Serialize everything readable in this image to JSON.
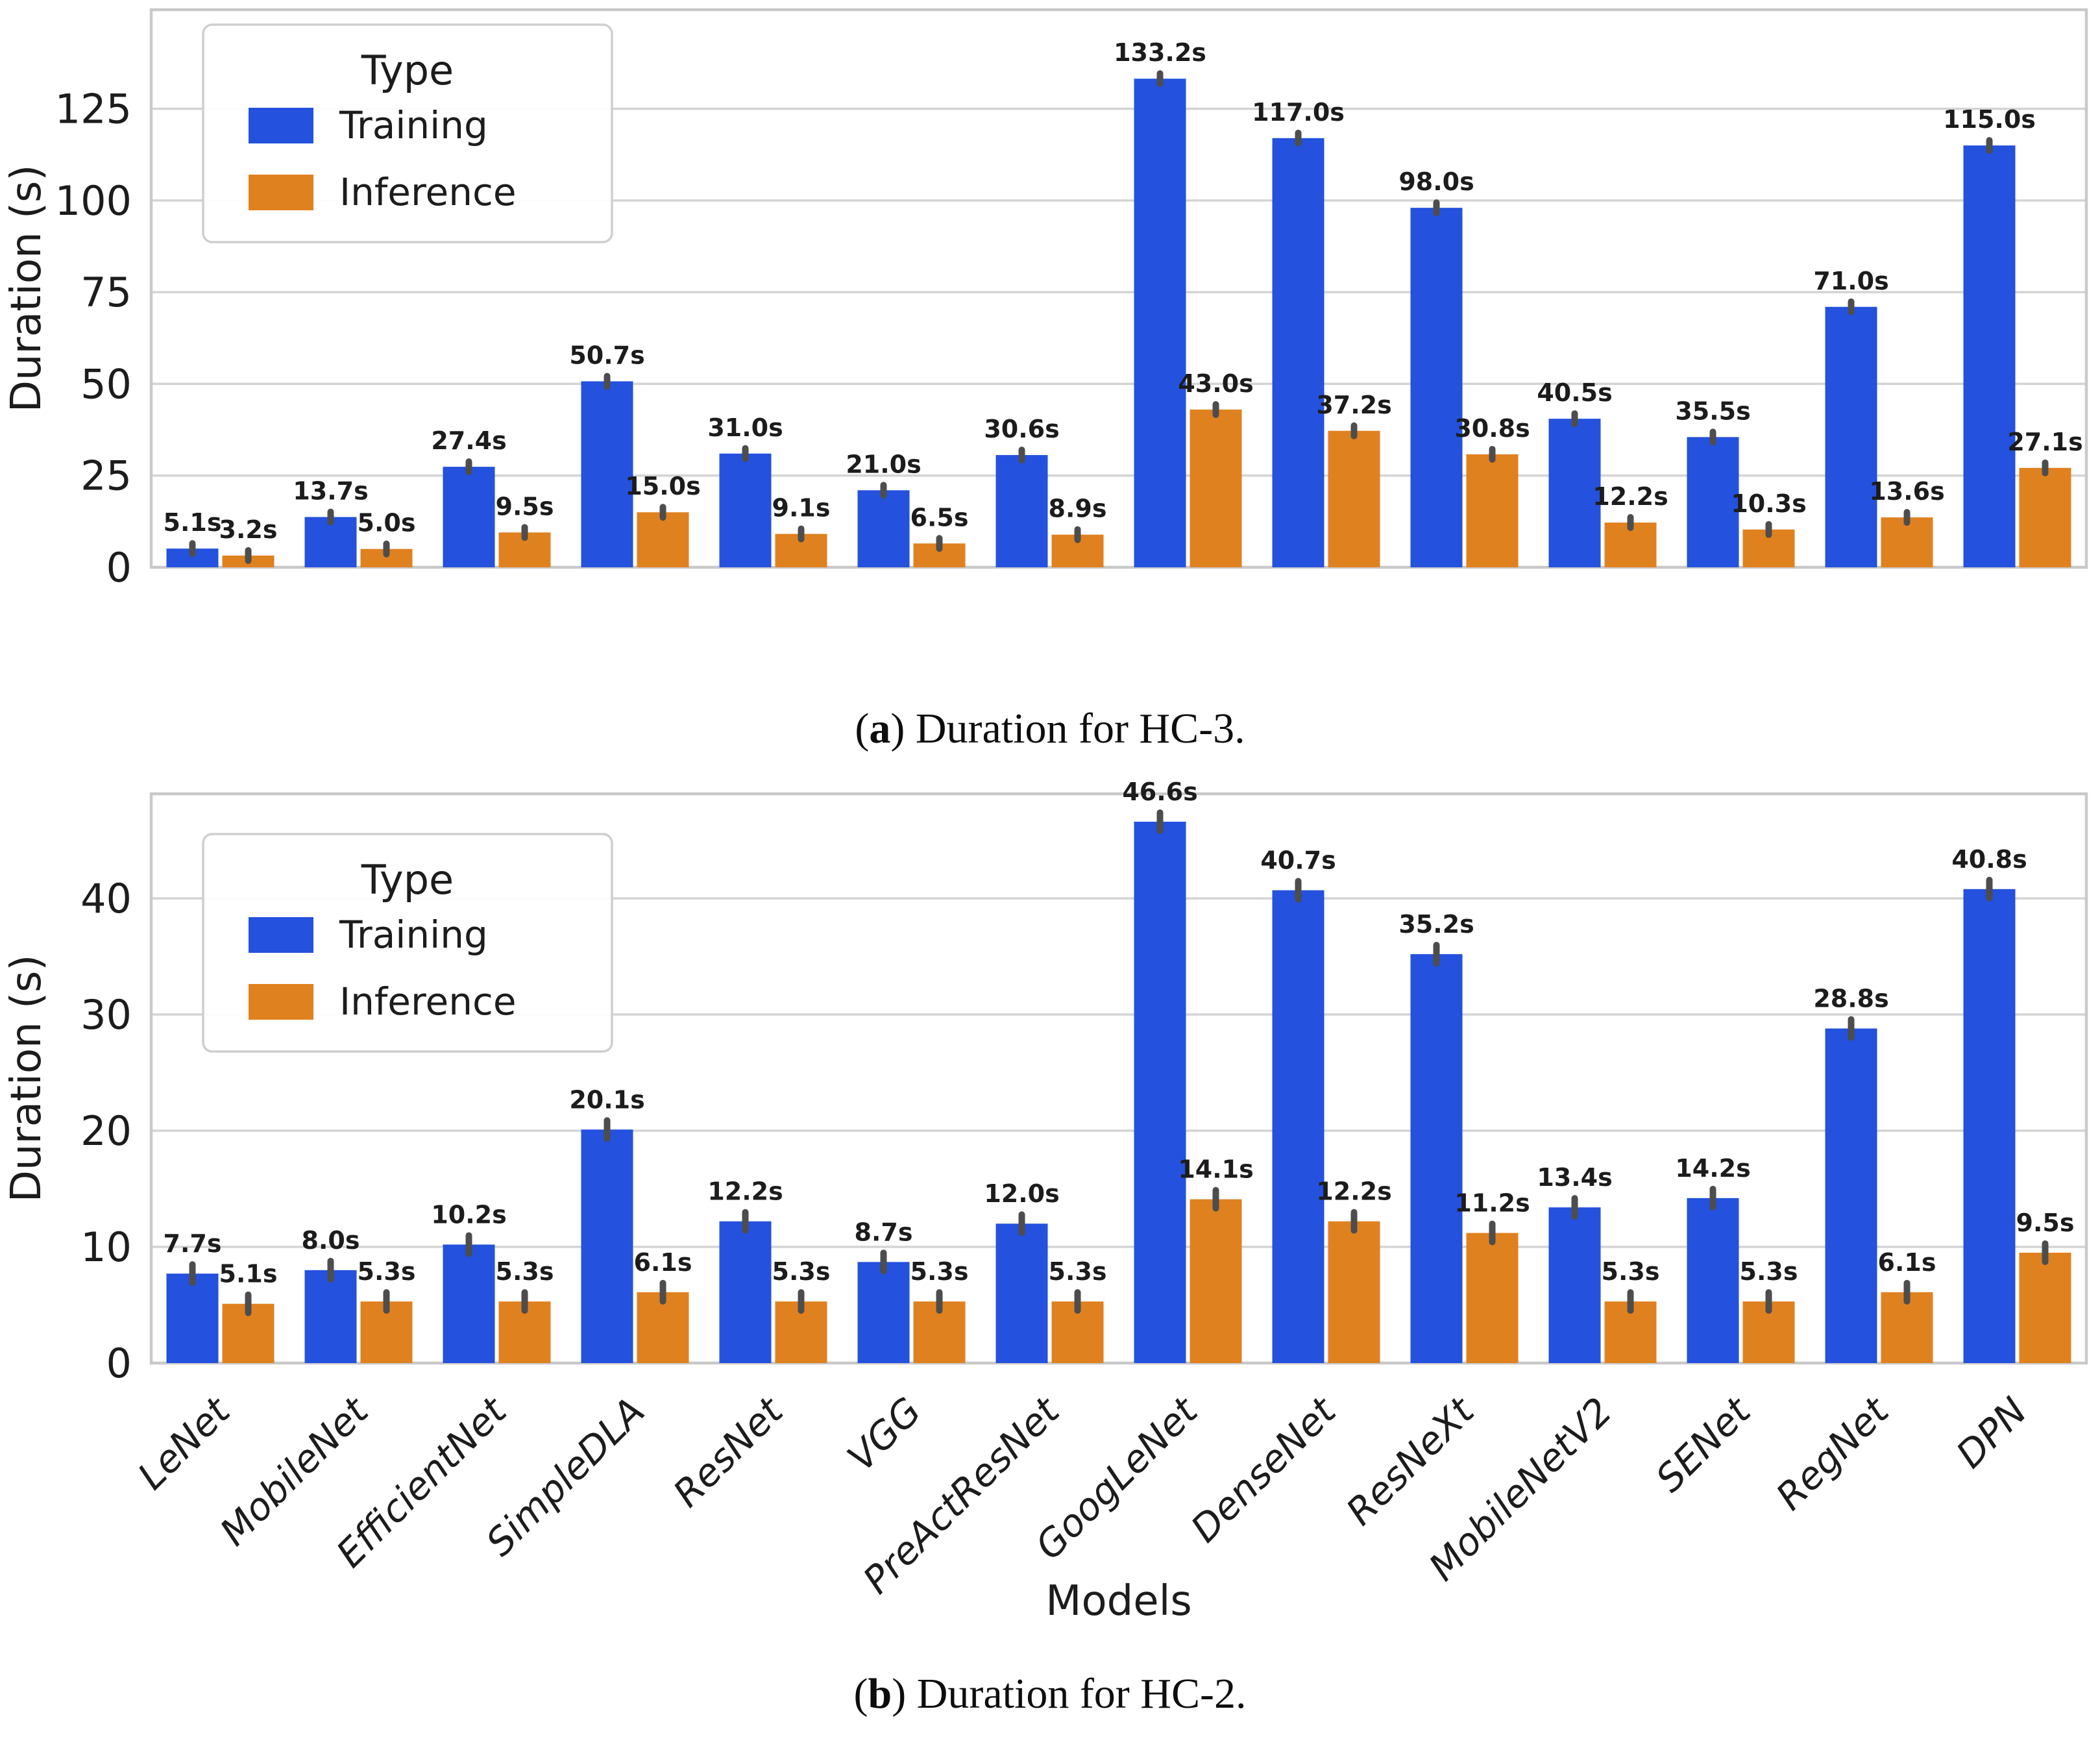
{
  "style": {
    "background": "#ffffff",
    "grid_color": "#d4d4d4",
    "frame_color": "#c9c9c9",
    "text_color": "#1c1c1c",
    "error_marker_color": "#4d4d4d",
    "training_color": "#2451dd",
    "inference_color": "#e0811f"
  },
  "legend": {
    "title": "Type",
    "entries": [
      {
        "label": "Training",
        "color": "#2451dd"
      },
      {
        "label": "Inference",
        "color": "#e0811f"
      }
    ]
  },
  "captions": [
    {
      "open": "(",
      "letter": "a",
      "rest": ") Duration for HC-3."
    },
    {
      "open": "(",
      "letter": "b",
      "rest": ") Duration for HC-2."
    }
  ],
  "chart_data": [
    {
      "type": "bar",
      "panel": "a",
      "title": "(a) Duration for HC-3.",
      "categories": [
        "LeNet",
        "MobileNet",
        "EfficientNet",
        "SimpleDLA",
        "ResNet",
        "VGG",
        "PreActResNet",
        "GoogLeNet",
        "DenseNet",
        "ResNeXt",
        "MobileNetV2",
        "SENet",
        "RegNet",
        "DPN"
      ],
      "series": [
        {
          "name": "Training",
          "color": "#2451dd",
          "values": [
            5.1,
            13.7,
            27.4,
            50.7,
            31.0,
            21.0,
            30.6,
            133.2,
            117.0,
            98.0,
            40.5,
            35.5,
            71.0,
            115.0
          ]
        },
        {
          "name": "Inference",
          "color": "#e0811f",
          "values": [
            3.2,
            5.0,
            9.5,
            15.0,
            9.1,
            6.5,
            8.9,
            43.0,
            37.2,
            30.8,
            12.2,
            10.3,
            13.6,
            27.1
          ]
        }
      ],
      "ylabel": "Duration (s)",
      "xlabel": "",
      "yticks": [
        0,
        25,
        50,
        75,
        100,
        125
      ],
      "ylim": [
        0,
        152
      ],
      "bar_label_suffix": "s",
      "show_x_tick_labels": false,
      "legend_title": "Type",
      "legend_position": "upper left",
      "grid": true
    },
    {
      "type": "bar",
      "panel": "b",
      "title": "(b) Duration for HC-2.",
      "categories": [
        "LeNet",
        "MobileNet",
        "EfficientNet",
        "SimpleDLA",
        "ResNet",
        "VGG",
        "PreActResNet",
        "GoogLeNet",
        "DenseNet",
        "ResNeXt",
        "MobileNetV2",
        "SENet",
        "RegNet",
        "DPN"
      ],
      "series": [
        {
          "name": "Training",
          "color": "#2451dd",
          "values": [
            7.7,
            8.0,
            10.2,
            20.1,
            12.2,
            8.7,
            12.0,
            46.6,
            40.7,
            35.2,
            13.4,
            14.2,
            28.8,
            40.8
          ]
        },
        {
          "name": "Inference",
          "color": "#e0811f",
          "values": [
            5.1,
            5.3,
            5.3,
            6.1,
            5.3,
            5.3,
            5.3,
            14.1,
            12.2,
            11.2,
            5.3,
            5.3,
            6.1,
            9.5
          ]
        }
      ],
      "ylabel": "Duration (s)",
      "xlabel": "Models",
      "yticks": [
        0,
        10,
        20,
        30,
        40
      ],
      "ylim": [
        0,
        49
      ],
      "bar_label_suffix": "s",
      "show_x_tick_labels": true,
      "legend_title": "Type",
      "legend_position": "upper left",
      "grid": true
    }
  ]
}
